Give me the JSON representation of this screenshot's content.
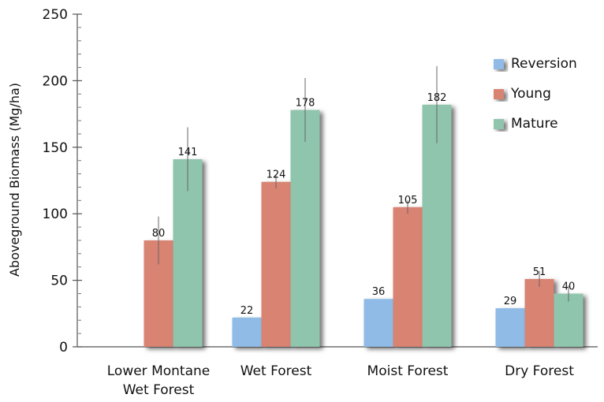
{
  "chart_data": {
    "type": "bar",
    "title": "",
    "xlabel": "",
    "ylabel": "Aboveground Biomass (Mg/ha)",
    "ylim": [
      0,
      250
    ],
    "yticks": [
      0,
      50,
      100,
      150,
      200,
      250
    ],
    "grid": false,
    "legend_position": "top-right",
    "categories": [
      [
        "Lower Montane",
        "Wet Forest"
      ],
      [
        "Wet Forest"
      ],
      [
        "Moist Forest"
      ],
      [
        "Dry Forest"
      ]
    ],
    "series": [
      {
        "name": "Reversion",
        "color": "#8fbbe6",
        "values": [
          null,
          22,
          36,
          29
        ],
        "labels": [
          "",
          "22",
          "36",
          "29"
        ],
        "errors": [
          null,
          0,
          0,
          0
        ]
      },
      {
        "name": "Young",
        "color": "#d98373",
        "values": [
          80,
          124,
          105,
          51
        ],
        "labels": [
          "80",
          "124",
          "105",
          "51"
        ],
        "errors": [
          18,
          5,
          5,
          6
        ]
      },
      {
        "name": "Mature",
        "color": "#8fc5ad",
        "values": [
          141,
          178,
          182,
          40
        ],
        "labels": [
          "141",
          "178",
          "182",
          "40"
        ],
        "errors": [
          24,
          24,
          29,
          6
        ]
      }
    ]
  }
}
